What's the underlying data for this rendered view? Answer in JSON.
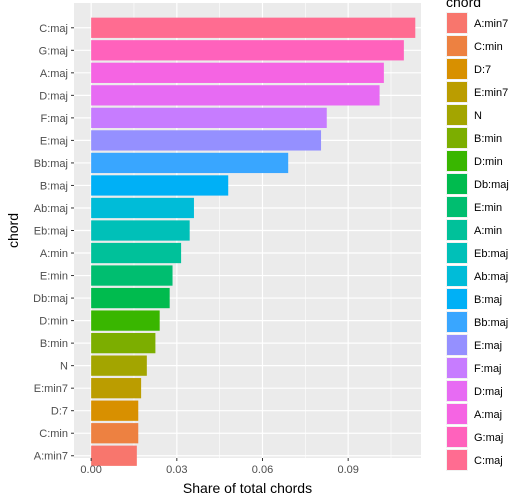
{
  "chart_data": {
    "type": "bar",
    "orientation": "horizontal",
    "xlabel": "Share of total chords",
    "ylabel": "chord",
    "xlim": [
      -0.006,
      0.1155
    ],
    "xticks": [
      "0.00",
      "0.03",
      "0.06",
      "0.09"
    ],
    "xtick_values": [
      0,
      0.03,
      0.06,
      0.09
    ],
    "grid": true,
    "legend_title": "chord",
    "legend_position": "right",
    "categories": [
      "C:maj",
      "G:maj",
      "A:maj",
      "D:maj",
      "F:maj",
      "E:maj",
      "Bb:maj",
      "B:maj",
      "Ab:maj",
      "Eb:maj",
      "A:min",
      "E:min",
      "Db:maj",
      "D:min",
      "B:min",
      "N",
      "E:min7",
      "D:7",
      "C:min",
      "A:min7"
    ],
    "values": [
      0.1135,
      0.1095,
      0.1025,
      0.101,
      0.0825,
      0.0805,
      0.069,
      0.048,
      0.036,
      0.0345,
      0.0315,
      0.0285,
      0.0275,
      0.024,
      0.0225,
      0.0195,
      0.0175,
      0.0165,
      0.0165,
      0.016
    ],
    "colors": [
      "#FF6C91",
      "#FF62BC",
      "#F564E3",
      "#E76BF3",
      "#C77CFF",
      "#9590FF",
      "#39A6FF",
      "#00B0F6",
      "#00BCD8",
      "#00C0B8",
      "#00C19A",
      "#00BE70",
      "#00BB4E",
      "#39B600",
      "#7CAE00",
      "#A3A500",
      "#BB9D00",
      "#D89000",
      "#ED8141",
      "#F8766D"
    ],
    "legend": [
      {
        "label": "A:min7",
        "color": "#F8766D"
      },
      {
        "label": "C:min",
        "color": "#ED8141"
      },
      {
        "label": "D:7",
        "color": "#D89000"
      },
      {
        "label": "E:min7",
        "color": "#BB9D00"
      },
      {
        "label": "N",
        "color": "#A3A500"
      },
      {
        "label": "B:min",
        "color": "#7CAE00"
      },
      {
        "label": "D:min",
        "color": "#39B600"
      },
      {
        "label": "Db:maj",
        "color": "#00BB4E"
      },
      {
        "label": "E:min",
        "color": "#00BE70"
      },
      {
        "label": "A:min",
        "color": "#00C19A"
      },
      {
        "label": "Eb:maj",
        "color": "#00C0B8"
      },
      {
        "label": "Ab:maj",
        "color": "#00BCD8"
      },
      {
        "label": "B:maj",
        "color": "#00B0F6"
      },
      {
        "label": "Bb:maj",
        "color": "#39A6FF"
      },
      {
        "label": "E:maj",
        "color": "#9590FF"
      },
      {
        "label": "F:maj",
        "color": "#C77CFF"
      },
      {
        "label": "D:maj",
        "color": "#E76BF3"
      },
      {
        "label": "A:maj",
        "color": "#F564E3"
      },
      {
        "label": "G:maj",
        "color": "#FF62BC"
      },
      {
        "label": "C:maj",
        "color": "#FF6C91"
      }
    ],
    "panel_background": "#EBEBEB",
    "grid_color": "#FFFFFF"
  }
}
